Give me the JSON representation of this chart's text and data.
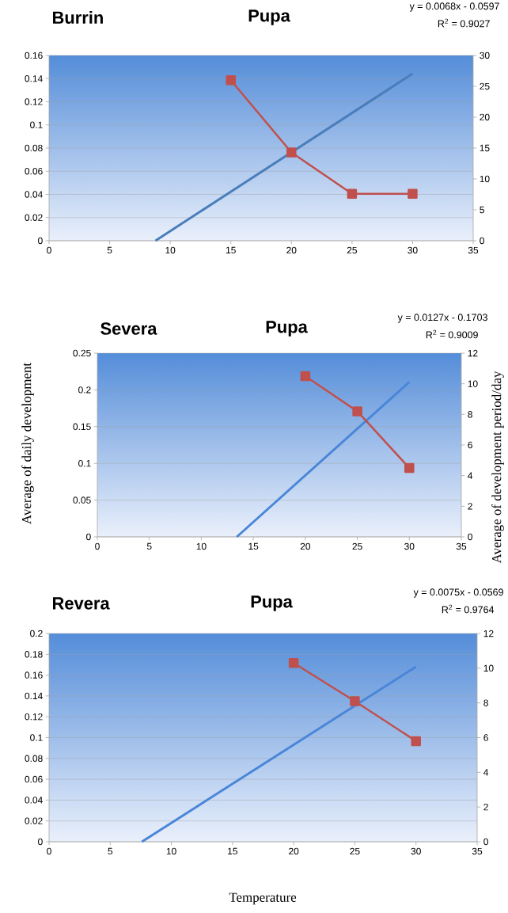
{
  "chart_data": [
    {
      "type": "line",
      "title": "Burrin",
      "subtitle": "Pupa",
      "annotations": [
        "y = 0.0068x - 0.0597",
        "R$^{2}$ = 0.9027"
      ],
      "xlim": [
        0,
        35
      ],
      "xticks": [
        0,
        5,
        10,
        15,
        20,
        25,
        30,
        35
      ],
      "ylim": [
        0,
        0.16
      ],
      "yticks": [
        0,
        0.02,
        0.04,
        0.06,
        0.08,
        0.1,
        0.12,
        0.14,
        0.16
      ],
      "y2lim": [
        0,
        30
      ],
      "y2ticks": [
        0,
        5,
        10,
        15,
        20,
        25,
        30
      ],
      "grid": "y",
      "line_style": "solid",
      "series": [
        {
          "color": "#4a7ebb",
          "marker": "none",
          "x": [
            8.78,
            30
          ],
          "values": [
            0,
            0.1443
          ]
        },
        {
          "axis": "y2",
          "color": "#c0504d",
          "marker": "square",
          "x": [
            15,
            20,
            25,
            30
          ],
          "values": [
            26,
            14.3,
            7.6,
            7.6
          ]
        }
      ]
    },
    {
      "type": "line",
      "title": "Severa",
      "subtitle": "Pupa",
      "annotations": [
        "y = 0.0127x - 0.1703",
        "R$^{2}$ = 0.9009"
      ],
      "ylabel": "Average of daily development",
      "y2label": "Average  of development period/day",
      "xlim": [
        0,
        35
      ],
      "xticks": [
        0,
        5,
        10,
        15,
        20,
        25,
        30,
        35
      ],
      "ylim": [
        0,
        0.25
      ],
      "yticks": [
        0,
        0.05,
        0.1,
        0.15,
        0.2,
        0.25
      ],
      "y2lim": [
        0,
        12
      ],
      "y2ticks": [
        0,
        2,
        4,
        6,
        8,
        10,
        12
      ],
      "grid": "y",
      "line_style": "solid",
      "series": [
        {
          "color": "#4a86d8",
          "marker": "none",
          "x": [
            13.41,
            30
          ],
          "values": [
            0,
            0.2107
          ]
        },
        {
          "axis": "y2",
          "color": "#c0504d",
          "marker": "square",
          "x": [
            20,
            25,
            30
          ],
          "values": [
            10.5,
            8.2,
            4.5
          ]
        }
      ]
    },
    {
      "type": "line",
      "title": "Revera",
      "subtitle": "Pupa",
      "annotations": [
        "y = 0.0075x - 0.0569",
        "R$^{2}$ = 0.9764"
      ],
      "xlabel": "Temperature",
      "xlim": [
        0,
        35
      ],
      "xticks": [
        0,
        5,
        10,
        15,
        20,
        25,
        30,
        35
      ],
      "ylim": [
        0,
        0.2
      ],
      "yticks": [
        0,
        0.02,
        0.04,
        0.06,
        0.08,
        0.1,
        0.12,
        0.14,
        0.16,
        0.18,
        0.2
      ],
      "y2lim": [
        0,
        12
      ],
      "y2ticks": [
        0,
        2,
        4,
        6,
        8,
        10,
        12
      ],
      "grid": "y",
      "line_style": "solid",
      "series": [
        {
          "color": "#4a86d8",
          "marker": "none",
          "x": [
            7.59,
            30
          ],
          "values": [
            0,
            0.1681
          ]
        },
        {
          "axis": "y2",
          "color": "#c0504d",
          "marker": "square",
          "x": [
            20,
            25,
            30
          ],
          "values": [
            10.3,
            8.1,
            5.8
          ]
        }
      ]
    }
  ]
}
